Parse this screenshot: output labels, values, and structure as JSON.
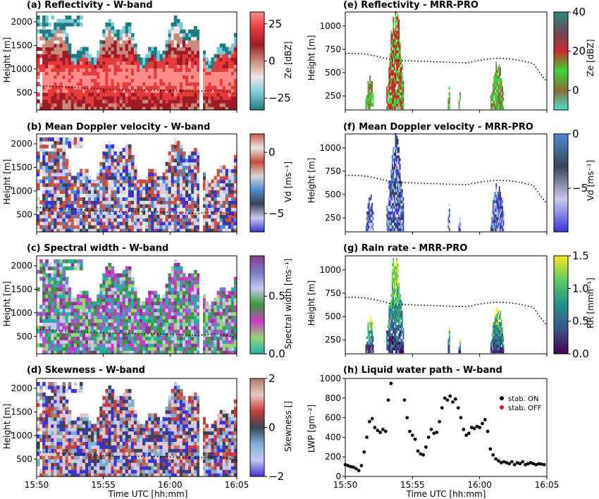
{
  "chart_data": [
    {
      "type": "heatmap",
      "panel": "a",
      "title": "(a) Reflectivity - W-band",
      "ylabel": "Height [m]",
      "yticks": [
        500,
        1000,
        1500,
        2000
      ],
      "ylim": [
        130,
        2210
      ],
      "xlim": [
        0,
        15
      ],
      "xticks": [
        0,
        5,
        10,
        15
      ],
      "xticklabels": [],
      "colorbar": {
        "label": "Ze [dBZ]",
        "ticks": [
          -25,
          0,
          25
        ],
        "ticklabels": [
          "−25",
          "0",
          "25"
        ],
        "range": [
          -33,
          33
        ],
        "colors": [
          "#1e7b80",
          "#79c9d6",
          "#f0e6e8",
          "#c98a7c",
          "#9c1c2a",
          "#e73a3a",
          "#ff8a8a"
        ]
      },
      "dotted_line": {
        "x": [
          0,
          1.5,
          3,
          4.5,
          6,
          7.5,
          9,
          10.5,
          12,
          13.5,
          15
        ],
        "y": [
          650,
          630,
          600,
          580,
          560,
          560,
          555,
          540,
          520,
          560,
          470
        ]
      },
      "data_gap_x": 12.2
    },
    {
      "type": "heatmap",
      "panel": "b",
      "title": "(b) Mean Doppler velocity - W-band",
      "ylabel": "Height [m]",
      "yticks": [
        500,
        1000,
        1500,
        2000
      ],
      "ylim": [
        130,
        2210
      ],
      "xlim": [
        0,
        15
      ],
      "xticks": [
        0,
        5,
        10,
        15
      ],
      "xticklabels": [],
      "colorbar": {
        "label": "Vd [ms⁻¹]",
        "ticks": [
          -5,
          0
        ],
        "ticklabels": [
          "−5",
          "0"
        ],
        "range": [
          -6.5,
          1.5
        ],
        "colors": [
          "#3a34d6",
          "#c9c9f0",
          "#3b4455",
          "#4f8cd6",
          "#d6d6d6",
          "#c94b3c",
          "#e6e6e6",
          "#c95a4a"
        ]
      }
    },
    {
      "type": "heatmap",
      "panel": "c",
      "title": "(c) Spectral width - W-band",
      "ylabel": "Height [m]",
      "yticks": [
        500,
        1000,
        1500,
        2000
      ],
      "ylim": [
        130,
        2210
      ],
      "xlim": [
        0,
        15
      ],
      "xticks": [
        0,
        5,
        10,
        15
      ],
      "xticklabels": [],
      "colorbar": {
        "label": "Spectral width [ms⁻¹]",
        "ticks": [
          0.0,
          0.5
        ],
        "ticklabels": [
          "0.0",
          "0.5"
        ],
        "range": [
          0,
          0.85
        ],
        "colors": [
          "#20b2aa",
          "#9ad47a",
          "#c83cc8",
          "#3a9a3a",
          "#c8c8f0",
          "#7a7ac8",
          "#8b3a8b"
        ]
      }
    },
    {
      "type": "heatmap",
      "panel": "d",
      "title": "(d) Skewness - W-band",
      "ylabel": "Height [m]",
      "yticks": [
        500,
        1000,
        1500,
        2000
      ],
      "ylim": [
        130,
        2210
      ],
      "xlim": [
        0,
        15
      ],
      "xticks": [
        0,
        5,
        10,
        15
      ],
      "xticklabels": [
        "15:50",
        "15:55",
        "16:00",
        "16:05"
      ],
      "xlabel": "Time UTC [hh:mm]",
      "colorbar": {
        "label": "Skewness []",
        "ticks": [
          -2,
          0,
          2
        ],
        "ticklabels": [
          "−2",
          "0",
          "2"
        ],
        "range": [
          -2,
          2
        ],
        "colors": [
          "#3a34d6",
          "#c9c9f0",
          "#7ab0d6",
          "#3b4455",
          "#c83c3c",
          "#e8c8c8",
          "#b07a6a"
        ]
      }
    },
    {
      "type": "heatmap",
      "panel": "e",
      "title": "(e) Reflectivity - MRR-PRO",
      "ylabel": "Height [m]",
      "yticks": [
        250,
        500,
        750,
        1000
      ],
      "ylim": [
        100,
        1150
      ],
      "xlim": [
        0,
        15
      ],
      "xticks": [
        0,
        5,
        10,
        15
      ],
      "xticklabels": [],
      "colorbar": {
        "label": "Ze [dBZ]",
        "ticks": [
          0,
          20,
          40
        ],
        "ticklabels": [
          "0",
          "20",
          "40"
        ],
        "range": [
          -10,
          40
        ],
        "colors": [
          "#4fe0c8",
          "#8b6a3a",
          "#3ad63a",
          "#c82a2a",
          "#6a4a5a",
          "#2a8a7a"
        ]
      }
    },
    {
      "type": "heatmap",
      "panel": "f",
      "title": "(f) Mean Doppler velocity - MRR-PRO",
      "ylabel": "Height [m]",
      "yticks": [
        250,
        500,
        750,
        1000
      ],
      "ylim": [
        100,
        1150
      ],
      "xlim": [
        0,
        15
      ],
      "xticks": [
        0,
        5,
        10,
        15
      ],
      "xticklabels": [],
      "colorbar": {
        "label": "Vd [ms⁻¹]",
        "ticks": [
          -5,
          0
        ],
        "ticklabels": [
          "−5",
          "0"
        ],
        "range": [
          -9,
          0
        ],
        "colors": [
          "#3a34d6",
          "#c9c9f0",
          "#3b4455",
          "#4f8cd6"
        ]
      }
    },
    {
      "type": "heatmap",
      "panel": "g",
      "title": "(g) Rain rate - MRR-PRO",
      "ylabel": "Height [m]",
      "yticks": [
        250,
        500,
        750,
        1000
      ],
      "ylim": [
        100,
        1150
      ],
      "xlim": [
        0,
        15
      ],
      "xticks": [
        0,
        5,
        10,
        15
      ],
      "xticklabels": [],
      "colorbar": {
        "label": "RR [mmh⁻¹]",
        "ticks": [
          0.0,
          0.5,
          1.0,
          1.5
        ],
        "ticklabels": [
          "0.0",
          "0.5",
          "1.0",
          "1.5"
        ],
        "range": [
          0,
          1.5
        ],
        "colors": [
          "#440154",
          "#3b528b",
          "#21918c",
          "#5ec962",
          "#fde725"
        ]
      }
    },
    {
      "type": "scatter",
      "panel": "h",
      "title": "(h) Liquid water path - W-band",
      "ylabel": "LWP [gm⁻²]",
      "xlabel": "Time UTC [hh:mm]",
      "xlim": [
        0,
        15
      ],
      "ylim": [
        0,
        1000
      ],
      "xticks": [
        0,
        5,
        10,
        15
      ],
      "xticklabels": [
        "15:50",
        "15:55",
        "16:00",
        "16:05"
      ],
      "yticks": [
        0,
        200,
        400,
        600,
        800,
        1000
      ],
      "legend": [
        "stab. ON",
        "stab. OFF"
      ],
      "legend_colors": [
        "#000000",
        "#e41a1c"
      ],
      "legend_position": "upper-right",
      "series": [
        {
          "name": "stab. ON",
          "x": [
            0.0,
            0.2,
            0.4,
            0.6,
            0.8,
            1.0,
            1.2,
            1.4,
            1.6,
            1.8,
            2.0,
            2.2,
            2.4,
            2.6,
            2.8,
            3.0,
            3.2,
            3.4,
            4.4,
            4.6,
            4.8,
            5.0,
            5.2,
            5.4,
            5.6,
            5.8,
            6.0,
            6.2,
            6.4,
            6.6,
            6.8,
            7.0,
            7.2,
            7.4,
            7.6,
            7.8,
            8.0,
            8.2,
            8.4,
            8.6,
            8.8,
            9.0,
            9.2,
            9.4,
            9.6,
            9.8,
            10.0,
            10.2,
            10.4,
            10.6,
            10.8,
            11.0,
            11.2,
            11.4,
            11.6,
            11.8,
            12.0,
            12.2,
            12.4,
            12.6,
            12.8,
            13.0,
            13.2,
            13.4,
            13.6,
            13.8,
            14.0,
            14.2,
            14.4,
            14.6,
            14.8
          ],
          "y": [
            120,
            110,
            100,
            95,
            80,
            60,
            110,
            250,
            400,
            560,
            590,
            500,
            470,
            450,
            480,
            460,
            780,
            950,
            780,
            600,
            460,
            420,
            380,
            260,
            230,
            220,
            300,
            400,
            480,
            440,
            450,
            560,
            700,
            800,
            780,
            820,
            760,
            790,
            700,
            600,
            480,
            420,
            440,
            500,
            490,
            510,
            500,
            540,
            580,
            460,
            280,
            220,
            180,
            160,
            140,
            150,
            140,
            130,
            150,
            120,
            140,
            130,
            150,
            120,
            130,
            140,
            130,
            120,
            130,
            125,
            120
          ]
        }
      ]
    }
  ]
}
